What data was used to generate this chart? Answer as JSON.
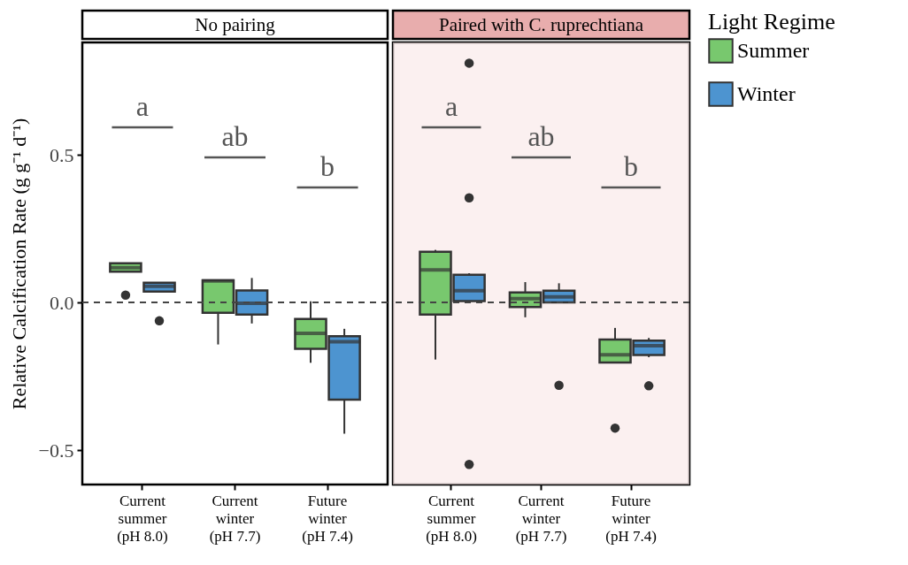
{
  "chart_data": [
    {
      "type": "box",
      "title": "No pairing",
      "ylabel": "Relative Calcification Rate (g g⁻¹ d⁻¹)",
      "legend_title": "Light Regime",
      "legend": "right",
      "grid": false,
      "categories": [
        "Current\nsummer\n(pH 8.0)",
        "Current\nwinter\n(pH 7.7)",
        "Future\nwinter\n(pH 7.4)"
      ],
      "ylim": [
        -0.616,
        0.88
      ],
      "yticks": [
        -0.5,
        {
          "value": 0,
          "label": "0.0"
        },
        0.5
      ],
      "series": [
        {
          "name": "Summer",
          "color": "#78c86e",
          "boxes": [
            {
              "low": 0.104,
              "q1": 0.104,
              "median": 0.118,
              "q3": 0.133,
              "high": 0.133,
              "outliers": [
                0.025
              ]
            },
            {
              "low": -0.142,
              "q1": -0.035,
              "median": 0.073,
              "q3": 0.075,
              "high": 0.075
            },
            {
              "low": -0.204,
              "q1": -0.157,
              "median": -0.104,
              "q3": -0.056,
              "high": 0.004
            }
          ]
        },
        {
          "name": "Winter",
          "color": "#4d94d0",
          "boxes": [
            {
              "low": 0.037,
              "q1": 0.037,
              "median": 0.055,
              "q3": 0.067,
              "high": 0.067,
              "outliers": [
                -0.062
              ]
            },
            {
              "low": -0.071,
              "q1": -0.041,
              "median": -0.003,
              "q3": 0.041,
              "high": 0.083
            },
            {
              "low": -0.444,
              "q1": -0.329,
              "median": -0.133,
              "q3": -0.114,
              "high": -0.089
            }
          ]
        }
      ],
      "ref_lines": [
        {
          "axis": "y",
          "value": 0,
          "line_style": "dashed"
        }
      ],
      "annotations": [
        "a",
        "ab",
        "b"
      ]
    },
    {
      "type": "box",
      "title": "Paired with C. ruprechtiana",
      "legend": false,
      "grid": false,
      "tick_labels": "x",
      "categories": [
        "Current\nsummer\n(pH 8.0)",
        "Current\nwinter\n(pH 7.7)",
        "Future\nwinter\n(pH 7.4)"
      ],
      "ylim": [
        -0.616,
        0.88
      ],
      "bands": [
        {
          "axis": "y",
          "from": -0.616,
          "to": 0.88,
          "color": "#f8e6e6"
        }
      ],
      "series": [
        {
          "name": "Summer",
          "color": "#78c86e",
          "boxes": [
            {
              "low": -0.193,
              "q1": -0.041,
              "median": 0.11,
              "q3": 0.172,
              "high": 0.178
            },
            {
              "low": -0.05,
              "q1": -0.015,
              "median": 0.013,
              "q3": 0.034,
              "high": 0.069
            },
            {
              "low": -0.203,
              "q1": -0.203,
              "median": -0.177,
              "q3": -0.125,
              "high": -0.086,
              "outliers": [
                -0.425
              ]
            }
          ]
        },
        {
          "name": "Winter",
          "color": "#4d94d0",
          "boxes": [
            {
              "low": 0.005,
              "q1": 0.005,
              "median": 0.04,
              "q3": 0.094,
              "high": 0.099,
              "outliers": [
                0.81,
                0.354,
                -0.548
              ]
            },
            {
              "low": 0.0,
              "q1": 0.0,
              "median": 0.019,
              "q3": 0.04,
              "high": 0.065,
              "outliers": [
                -0.28
              ]
            },
            {
              "low": -0.185,
              "q1": -0.178,
              "median": -0.146,
              "q3": -0.129,
              "high": -0.12,
              "outliers": [
                -0.282
              ]
            }
          ]
        }
      ],
      "ref_lines": [
        {
          "axis": "y",
          "value": 0,
          "line_style": "dashed"
        }
      ],
      "annotations": [
        "a",
        "ab",
        "b"
      ]
    }
  ]
}
